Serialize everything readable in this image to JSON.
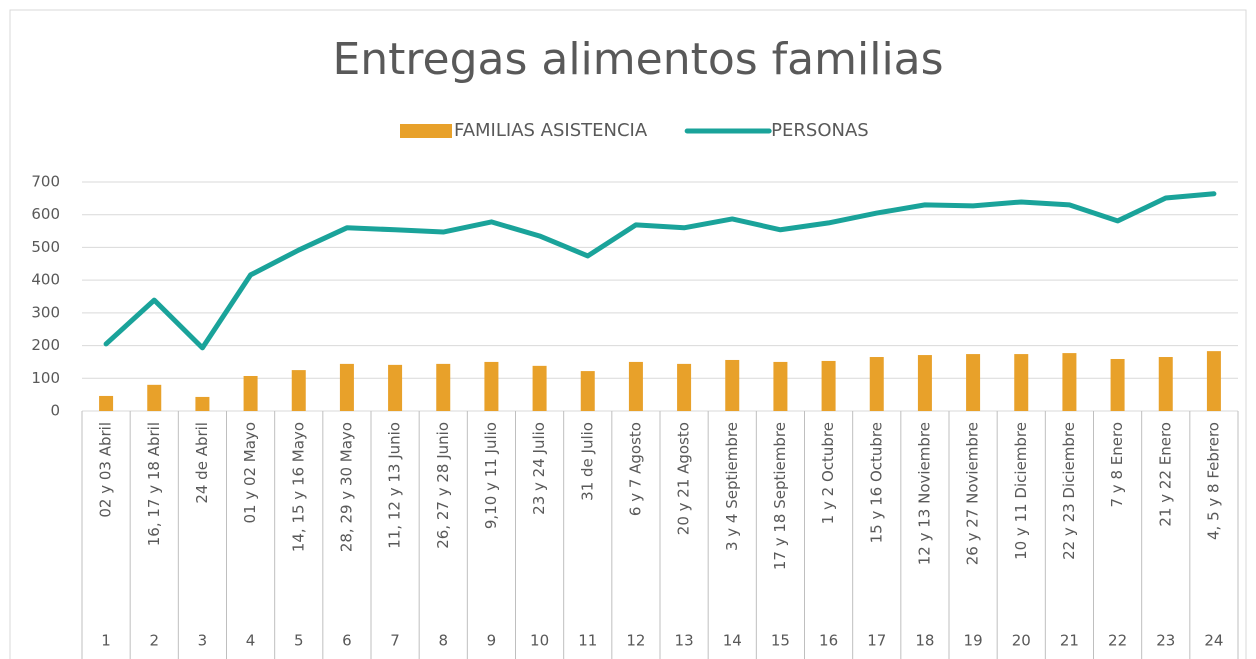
{
  "chart_data": {
    "type": "bar_line",
    "title": "Entregas alimentos familias",
    "categories": [
      "02 y 03 Abril",
      "16, 17 y 18 Abril",
      "24 de Abril",
      "01 y 02 Mayo",
      "14, 15 y 16 Mayo",
      "28, 29 y 30 Mayo",
      "11, 12 y 13 Junio",
      "26, 27 y 28 Junio",
      "9,10 y 11 Julio",
      "23 y 24 Julio",
      "31 de Julio",
      "6 y 7 Agosto",
      "20 y 21 Agosto",
      "3 y 4 Septiembre",
      "17 y 18 Septiembre",
      "1 y 2 Octubre",
      "15 y 16 Octubre",
      "12 y 13 Noviembre",
      "26 y 27 Noviembre",
      "10 y 11 Diciembre",
      "22 y 23 Diciembre",
      "7 y 8 Enero",
      "21 y 22 Enero",
      "4, 5 y 8 Febrero"
    ],
    "category_groups": [
      "1",
      "2",
      "3",
      "4",
      "5",
      "6",
      "7",
      "8",
      "9",
      "10",
      "11",
      "12",
      "13",
      "14",
      "15",
      "16",
      "17",
      "18",
      "19",
      "20",
      "21",
      "22",
      "23",
      "24"
    ],
    "series": [
      {
        "name": "FAMILIAS ASISTENCIA",
        "kind": "bar",
        "color": "#e8a12a",
        "values": [
          46,
          80,
          43,
          107,
          125,
          144,
          141,
          144,
          150,
          138,
          122,
          150,
          144,
          156,
          150,
          153,
          165,
          171,
          174,
          174,
          177,
          159,
          165,
          183
        ]
      },
      {
        "name": "PERSONAS",
        "kind": "line",
        "color": "#1aa39a",
        "values": [
          205,
          339,
          193,
          416,
          492,
          560,
          554,
          547,
          578,
          535,
          474,
          569,
          560,
          587,
          554,
          575,
          605,
          630,
          627,
          639,
          630,
          581,
          651,
          664
        ]
      }
    ],
    "ylim": [
      0,
      700
    ],
    "yticks": [
      0,
      100,
      200,
      300,
      400,
      500,
      600,
      700
    ],
    "grid": true,
    "legend": "top"
  }
}
